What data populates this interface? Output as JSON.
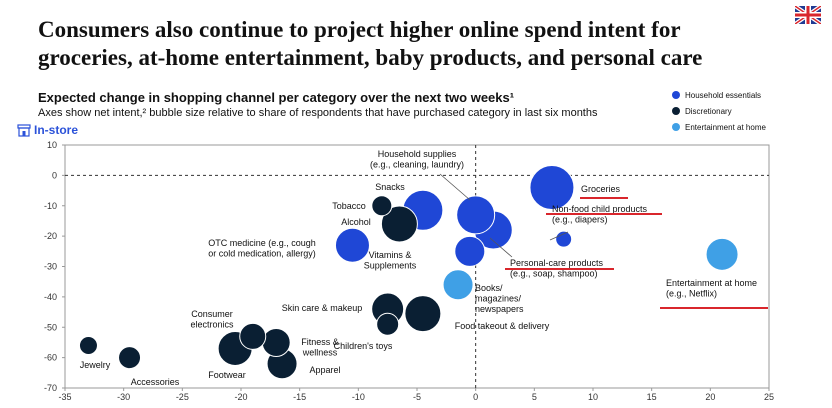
{
  "headline": "Consumers also continue to project higher online spend intent for groceries, at-home entertainment, baby products, and personal care",
  "headline_lines": [
    "Consumers also continue to project higher online spend intent for",
    "groceries, at-home entertainment, baby products, and personal care"
  ],
  "subtitle": "Expected change in shopping channel per category over the next two weeks¹",
  "note": "Axes show net intent,² bubble size relative to share of respondents that have purchased category in last six months",
  "instore_label": "In-store",
  "colors": {
    "household": "#1f47d6",
    "discretionary": "#0a1f33",
    "entertainment": "#3fa0e6",
    "highlight": "#d9262c"
  },
  "legend": [
    {
      "label": "Household essentials",
      "color": "#1f47d6"
    },
    {
      "label": "Discretionary",
      "color": "#0a1f33"
    },
    {
      "label": "Entertainment at home",
      "color": "#3fa0e6"
    }
  ],
  "chart_data": {
    "type": "scatter",
    "xlim": [
      -35,
      25
    ],
    "ylim": [
      -70,
      10
    ],
    "x_ticks": [
      -35,
      -30,
      -25,
      -20,
      -15,
      -10,
      -5,
      0,
      5,
      10,
      15,
      20,
      25
    ],
    "y_ticks": [
      10,
      0,
      -10,
      -20,
      -30,
      -40,
      -50,
      -60,
      -70
    ],
    "grid": false,
    "legend_position": "top-right",
    "points": [
      {
        "label": "Groceries",
        "x": 6.5,
        "y": -4,
        "size": 22,
        "group": "household",
        "highlight": true
      },
      {
        "label": "Non-food child products (e.g., diapers)",
        "x": 7.5,
        "y": -21,
        "size": 8,
        "group": "household",
        "highlight": true
      },
      {
        "label": "Personal-care products (e.g., soap, shampoo)",
        "x": 1.5,
        "y": -18,
        "size": 19,
        "group": "household",
        "highlight": true
      },
      {
        "label": "Household supplies (e.g., cleaning, laundry)",
        "x": 0,
        "y": -13,
        "size": 19,
        "group": "household"
      },
      {
        "label": "Snacks",
        "x": -4.5,
        "y": -11.5,
        "size": 20,
        "group": "household"
      },
      {
        "label": "Vitamins & Supplements",
        "x": -0.5,
        "y": -25,
        "size": 15,
        "group": "household"
      },
      {
        "label": "OTC medicine (e.g., cough or cold medication, allergy)",
        "x": -10.5,
        "y": -23,
        "size": 17,
        "group": "household"
      },
      {
        "label": "Tobacco",
        "x": -8,
        "y": -10,
        "size": 10,
        "group": "discretionary"
      },
      {
        "label": "Alcohol",
        "x": -6.5,
        "y": -16,
        "size": 18,
        "group": "discretionary"
      },
      {
        "label": "Books/ magazines/ newspapers",
        "x": -1.5,
        "y": -36,
        "size": 15,
        "group": "entertainment"
      },
      {
        "label": "Entertainment at home (e.g., Netflix)",
        "x": 21,
        "y": -26,
        "size": 16,
        "group": "entertainment",
        "highlight": true
      },
      {
        "label": "Skin care & makeup",
        "x": -7.5,
        "y": -44,
        "size": 16,
        "group": "discretionary"
      },
      {
        "label": "Food takeout & delivery",
        "x": -4.5,
        "y": -45.5,
        "size": 18,
        "group": "discretionary"
      },
      {
        "label": "Children's toys",
        "x": -7.5,
        "y": -49,
        "size": 11,
        "group": "discretionary"
      },
      {
        "label": "Consumer electronics",
        "x": -19,
        "y": -53,
        "size": 13,
        "group": "discretionary"
      },
      {
        "label": "Fitness & wellness",
        "x": -17,
        "y": -55,
        "size": 14,
        "group": "discretionary"
      },
      {
        "label": "Footwear",
        "x": -20.5,
        "y": -57,
        "size": 17,
        "group": "discretionary"
      },
      {
        "label": "Apparel",
        "x": -16.5,
        "y": -62,
        "size": 15,
        "group": "discretionary"
      },
      {
        "label": "Jewelry",
        "x": -33,
        "y": -56,
        "size": 9,
        "group": "discretionary"
      },
      {
        "label": "Accessories",
        "x": -29.5,
        "y": -60,
        "size": 11,
        "group": "discretionary"
      }
    ]
  }
}
